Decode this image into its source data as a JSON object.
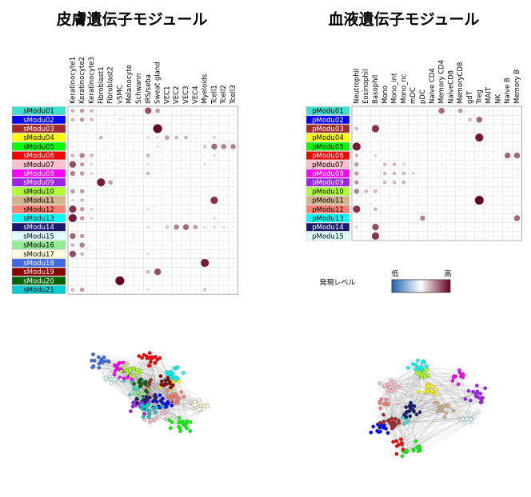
{
  "chart_data": [
    {
      "type": "dotmatrix",
      "title": "皮膚遺伝子モジュール",
      "rows": [
        "sModu01",
        "sModu02",
        "sModu03",
        "sModu04",
        "sModu05",
        "sModu06",
        "sModu07",
        "sModu08",
        "sModu09",
        "sModu10",
        "sModu11",
        "sModu12",
        "sModu13",
        "sModu14",
        "sModu15",
        "sModu16",
        "sModu17",
        "sModu18",
        "sModu19",
        "sModu20",
        "sModu21"
      ],
      "row_colors": [
        "#40e0d0",
        "#0000ff",
        "#a52a2a",
        "#ffff00",
        "#00ff00",
        "#ff0000",
        "#ffc0cb",
        "#ff00ff",
        "#a020f0",
        "#adff2f",
        "#d2b48c",
        "#fa8072",
        "#00ffff",
        "#191970",
        "#e0ffff",
        "#90ee90",
        "#ffffe0",
        "#4169e1",
        "#8b0000",
        "#006400",
        "#00ced1"
      ],
      "columns": [
        "Keratinocyte1",
        "Keratinocyte2",
        "Keratinocyte3",
        "Fibroblast1",
        "Fibroblast2",
        "vSMC",
        "Melanocyte",
        "Schwann",
        "IRS/seba",
        "Sweat gland",
        "VEC1",
        "VEC2",
        "VEC3",
        "VEC4",
        "Myeloids",
        "Tcell1",
        "Tcell2",
        "Tcell3"
      ],
      "clim": [
        -1,
        1
      ],
      "values": [
        [
          0.3,
          0.4,
          0.3,
          0,
          0,
          0,
          0,
          0,
          0.7,
          0.4,
          0,
          0,
          0,
          0,
          0,
          0,
          0,
          0
        ],
        [
          0.3,
          0.4,
          0.3,
          0,
          0,
          -0.2,
          0,
          0,
          -0.1,
          0,
          -0.1,
          0,
          -0.1,
          -0.1,
          0,
          0,
          -0.1,
          0
        ],
        [
          0,
          0,
          0,
          0,
          0,
          0,
          0,
          0,
          0,
          1,
          0,
          0,
          0,
          0,
          0,
          0,
          0,
          0
        ],
        [
          0,
          0,
          0,
          0.3,
          0,
          -0.1,
          0,
          0,
          -0.2,
          -0.2,
          0.4,
          0.3,
          0.3,
          -0.1,
          0,
          0.2,
          0,
          0
        ],
        [
          0,
          0,
          0,
          0,
          0,
          0,
          0,
          0,
          0,
          -0.2,
          0,
          0,
          0,
          0,
          -0.3,
          0.6,
          0.5,
          0.5
        ],
        [
          0.3,
          0.5,
          0.3,
          0,
          0,
          0,
          0,
          0,
          0.3,
          0,
          0,
          0,
          0,
          -0.1,
          0,
          -0.2,
          0,
          0
        ],
        [
          0.7,
          0.4,
          0.2,
          0,
          0,
          0,
          0,
          0,
          -0.2,
          0,
          0,
          0,
          -0.1,
          0,
          -0.2,
          0,
          0,
          0
        ],
        [
          0.5,
          0.4,
          0.2,
          0,
          0,
          0,
          0,
          0,
          0.3,
          0,
          0,
          0,
          0,
          0,
          0,
          0,
          0,
          0
        ],
        [
          0,
          0,
          0,
          0.9,
          0.4,
          0,
          0,
          0,
          0,
          0,
          0,
          0,
          0,
          0,
          0,
          0,
          0,
          0
        ],
        [
          0.4,
          0.4,
          0,
          0,
          0,
          0,
          0,
          0,
          -0.1,
          0,
          0,
          0,
          0,
          0,
          0,
          -0.1,
          0,
          0
        ],
        [
          0.2,
          0.3,
          0,
          0,
          0,
          0,
          0,
          0,
          0,
          0,
          0,
          0,
          0,
          0,
          0,
          0.8,
          0,
          0
        ],
        [
          0.8,
          0.4,
          0.2,
          0,
          0,
          0,
          0,
          0,
          -0.2,
          0,
          0,
          0,
          0,
          -0.1,
          0,
          0,
          0,
          0
        ],
        [
          0.9,
          0.4,
          0.2,
          0,
          0,
          0,
          0,
          0,
          0,
          0,
          0,
          0,
          0,
          0,
          0,
          -0.2,
          0,
          0
        ],
        [
          0,
          0,
          0,
          0,
          0,
          0,
          0,
          0,
          -0.2,
          0,
          -0.3,
          0.5,
          0.6,
          0.4,
          -0.2,
          -0.2,
          -0.2,
          0
        ],
        [
          0.6,
          0.4,
          0,
          0,
          0,
          0,
          0,
          0,
          0,
          0,
          0,
          0,
          0,
          0,
          0,
          0,
          0,
          0
        ],
        [
          0.3,
          0.5,
          0,
          0,
          0,
          0,
          0,
          0,
          0,
          0,
          0,
          0,
          0,
          0,
          0,
          0,
          0,
          0
        ],
        [
          0.7,
          0.3,
          0,
          0,
          0,
          0,
          0,
          0,
          -0.2,
          0,
          0,
          0,
          0,
          0,
          -0.1,
          0,
          0,
          0
        ],
        [
          0,
          0,
          0,
          0,
          0,
          0,
          0,
          0,
          0,
          0,
          0,
          0,
          0,
          0,
          0.9,
          0,
          0,
          0
        ],
        [
          0,
          0,
          0,
          0,
          0,
          0,
          0,
          0,
          0.3,
          0.7,
          0,
          0,
          0,
          0,
          0,
          0,
          0,
          0
        ],
        [
          0,
          0,
          0,
          0,
          0,
          1,
          0,
          0,
          0,
          0,
          0,
          0,
          0,
          0,
          0,
          0,
          0,
          0
        ],
        [
          0.3,
          0.4,
          0,
          0,
          0,
          0,
          0,
          0,
          -0.2,
          -0.1,
          0,
          0,
          0,
          0,
          -0.3,
          0,
          0,
          0
        ]
      ]
    },
    {
      "type": "dotmatrix",
      "title": "血液遺伝子モジュール",
      "rows": [
        "pModu01",
        "pModu02",
        "pModu03",
        "pModu04",
        "pModu05",
        "pModu06",
        "pModu07",
        "pModu08",
        "pModu09",
        "pModu10",
        "pModu11",
        "pModu12",
        "pModu13",
        "pModu14",
        "pModu15"
      ],
      "row_colors": [
        "#40e0d0",
        "#0000ff",
        "#a52a2a",
        "#ffff00",
        "#00ff00",
        "#ff0000",
        "#ffc0cb",
        "#ff00ff",
        "#a020f0",
        "#adff2f",
        "#d2b48c",
        "#fa8072",
        "#00ffff",
        "#191970",
        "#e0ffff"
      ],
      "columns": [
        "Neutrophil",
        "Eosinophil",
        "Basophil",
        "Mono",
        "Mono_int",
        "Mono_nc",
        "mDC",
        "pDC",
        "Naive CD4",
        "Memory CD4",
        "NaiveCD8",
        "MemoryCD8",
        "gdT",
        "Treg",
        "MAIT",
        "NK",
        "Naive B",
        "Memory B"
      ],
      "clim": [
        -1,
        1
      ],
      "values": [
        [
          0,
          0,
          0,
          0,
          0,
          0,
          0,
          0,
          0,
          0.6,
          0,
          0.4,
          0,
          0,
          0,
          0,
          0,
          0
        ],
        [
          0,
          0,
          0,
          0,
          0,
          0,
          0,
          0,
          0,
          0,
          0,
          0,
          0.3,
          0.6,
          0,
          0,
          0,
          0
        ],
        [
          0.3,
          0,
          0.8,
          0,
          0,
          0,
          0,
          0,
          0,
          0,
          0,
          0,
          0,
          0,
          0,
          0,
          0,
          0
        ],
        [
          0,
          0,
          0,
          0,
          0,
          0,
          0,
          0,
          0,
          0,
          0,
          0,
          0,
          0.9,
          0,
          0,
          0,
          0
        ],
        [
          0.9,
          0,
          0,
          0,
          0,
          0,
          0,
          0,
          0,
          0,
          0,
          0,
          0,
          0,
          0,
          0,
          0,
          0
        ],
        [
          0.3,
          0,
          0.2,
          0,
          0,
          0,
          0,
          0,
          0,
          0,
          0,
          0,
          0,
          0,
          0,
          0,
          0.6,
          0.6
        ],
        [
          0.4,
          0,
          0,
          0.3,
          0.3,
          0.2,
          0,
          0,
          0,
          -0.1,
          0,
          -0.1,
          0,
          0,
          0,
          0,
          0,
          0
        ],
        [
          0.4,
          0,
          0,
          0.3,
          0.3,
          0.3,
          0.2,
          0,
          0,
          0,
          0,
          0,
          0,
          0,
          0,
          0,
          0,
          0
        ],
        [
          0.4,
          0,
          0,
          0.3,
          0.3,
          0.3,
          0,
          0,
          0,
          0,
          0,
          0,
          0,
          0,
          0,
          0,
          0,
          0
        ],
        [
          0.5,
          0.3,
          0.3,
          0,
          0,
          0,
          0,
          0,
          0,
          0,
          0,
          0,
          0,
          0,
          0,
          0,
          0,
          0
        ],
        [
          0,
          0,
          0,
          0,
          0,
          0,
          0,
          0,
          0,
          0,
          0,
          0,
          0,
          1,
          0,
          0,
          0,
          0
        ],
        [
          0.8,
          0,
          0.3,
          0,
          0,
          0,
          0,
          0,
          0,
          0,
          0,
          0,
          0,
          0,
          0,
          0,
          0,
          0
        ],
        [
          0,
          0,
          0,
          0,
          0,
          0,
          0,
          0.5,
          0,
          0,
          0,
          0,
          0,
          0,
          0,
          0,
          0,
          0.6
        ],
        [
          0.2,
          0,
          0.7,
          0,
          0,
          0,
          0,
          0,
          0,
          0,
          0,
          0,
          0,
          0,
          0,
          0,
          0,
          0
        ],
        [
          0,
          0,
          0.8,
          0,
          0,
          0,
          0,
          0,
          0,
          0,
          0,
          0,
          0,
          0,
          0,
          0,
          0,
          0
        ]
      ],
      "colorbar": {
        "title": "発現レベル",
        "low": "低",
        "high": "高"
      }
    }
  ]
}
